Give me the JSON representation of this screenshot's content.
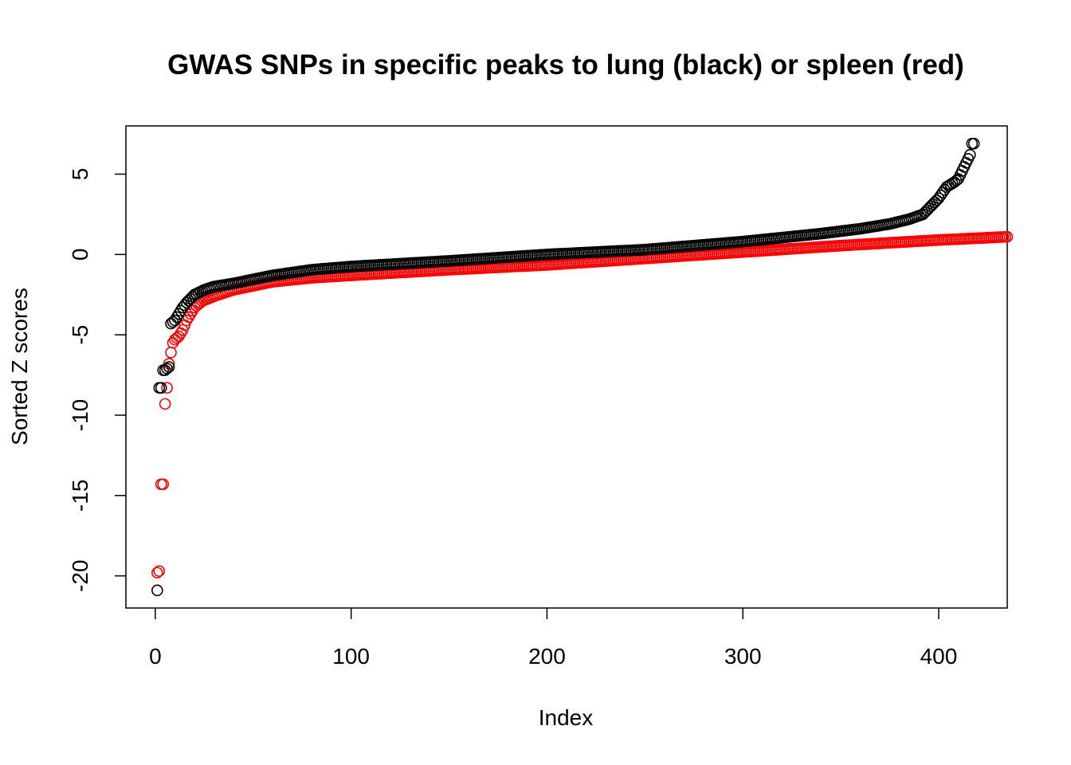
{
  "chart_data": {
    "type": "scatter",
    "title": "GWAS SNPs in specific peaks to lung (black) or spleen (red)",
    "xlabel": "Index",
    "ylabel": "Sorted Z scores",
    "xlim": [
      -15,
      435
    ],
    "ylim": [
      -22,
      8
    ],
    "x_ticks": [
      0,
      100,
      200,
      300,
      400
    ],
    "y_ticks": [
      -20,
      -15,
      -10,
      -5,
      0,
      5
    ],
    "x_tick_labels": [
      "0",
      "100",
      "200",
      "300",
      "400"
    ],
    "y_tick_labels": [
      "-20",
      "-15",
      "-10",
      "-5",
      "0",
      "5"
    ],
    "marker": "open-circle",
    "series": [
      {
        "color": "#ff0000",
        "n": 435,
        "anchors": [
          [
            1,
            -19.8
          ],
          [
            2,
            -19.7
          ],
          [
            3,
            -14.3
          ],
          [
            4,
            -14.3
          ],
          [
            5,
            -9.3
          ],
          [
            6,
            -8.3
          ],
          [
            7,
            -6.8
          ],
          [
            8,
            -6.1
          ],
          [
            9,
            -5.5
          ],
          [
            10,
            -5.3
          ],
          [
            12,
            -5.1
          ],
          [
            14,
            -4.7
          ],
          [
            16,
            -4.1
          ],
          [
            18,
            -3.7
          ],
          [
            20,
            -3.3
          ],
          [
            24,
            -2.9
          ],
          [
            30,
            -2.6
          ],
          [
            40,
            -2.2
          ],
          [
            60,
            -1.7
          ],
          [
            80,
            -1.45
          ],
          [
            100,
            -1.3
          ],
          [
            150,
            -0.95
          ],
          [
            200,
            -0.65
          ],
          [
            250,
            -0.25
          ],
          [
            300,
            0.15
          ],
          [
            350,
            0.55
          ],
          [
            400,
            0.9
          ],
          [
            435,
            1.1
          ]
        ]
      },
      {
        "color": "#000000",
        "n": 418,
        "anchors": [
          [
            1,
            -20.9
          ],
          [
            2,
            -8.3
          ],
          [
            3,
            -8.3
          ],
          [
            4,
            -7.2
          ],
          [
            5,
            -7.2
          ],
          [
            6,
            -7.1
          ],
          [
            7,
            -7.0
          ],
          [
            8,
            -4.3
          ],
          [
            9,
            -4.2
          ],
          [
            10,
            -4.1
          ],
          [
            12,
            -3.7
          ],
          [
            14,
            -3.3
          ],
          [
            16,
            -3.0
          ],
          [
            20,
            -2.5
          ],
          [
            25,
            -2.2
          ],
          [
            30,
            -2.0
          ],
          [
            40,
            -1.8
          ],
          [
            60,
            -1.3
          ],
          [
            80,
            -0.95
          ],
          [
            100,
            -0.75
          ],
          [
            150,
            -0.4
          ],
          [
            200,
            0.0
          ],
          [
            250,
            0.3
          ],
          [
            300,
            0.8
          ],
          [
            340,
            1.3
          ],
          [
            360,
            1.6
          ],
          [
            375,
            1.9
          ],
          [
            385,
            2.2
          ],
          [
            392,
            2.5
          ],
          [
            396,
            3.0
          ],
          [
            400,
            3.5
          ],
          [
            404,
            4.2
          ],
          [
            408,
            4.5
          ],
          [
            410,
            4.7
          ],
          [
            412,
            5.2
          ],
          [
            414,
            5.7
          ],
          [
            416,
            6.2
          ],
          [
            417,
            6.9
          ],
          [
            418,
            6.9
          ]
        ]
      }
    ]
  }
}
